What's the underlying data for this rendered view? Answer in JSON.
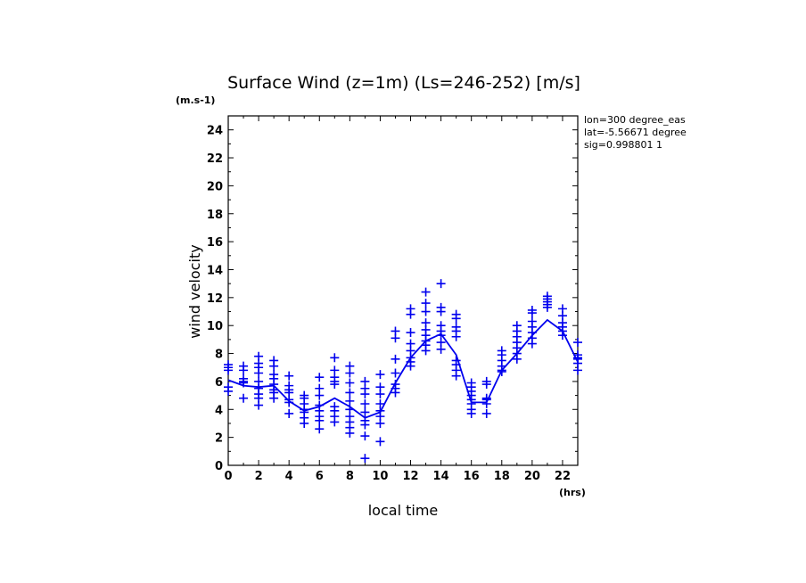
{
  "chart_data": {
    "type": "line",
    "title": "Surface Wind (z=1m) (Ls=246-252) [m/s]",
    "xlabel": "local time",
    "ylabel": "wind velocity",
    "x_unit": "(hrs)",
    "y_unit": "(m.s-1)",
    "xlim": [
      0,
      23
    ],
    "ylim": [
      0,
      25
    ],
    "x_ticks": [
      0,
      2,
      4,
      6,
      8,
      10,
      12,
      14,
      16,
      18,
      20,
      22
    ],
    "y_ticks": [
      0,
      2,
      4,
      6,
      8,
      10,
      12,
      14,
      16,
      18,
      20,
      22,
      24
    ],
    "grid": false,
    "annotations": [
      "lon=300 degree_eas",
      "lat=-5.56671 degree",
      "sig=0.998801 1"
    ],
    "mean_line": {
      "x": [
        0,
        1,
        2,
        3,
        4,
        5,
        6,
        7,
        8,
        9,
        10,
        11,
        12,
        13,
        14,
        15,
        16,
        17,
        18,
        19,
        20,
        21,
        22,
        23
      ],
      "y": [
        6.1,
        5.7,
        5.6,
        5.7,
        4.6,
        3.9,
        4.2,
        4.8,
        4.2,
        3.4,
        3.8,
        5.9,
        7.7,
        8.9,
        9.4,
        7.9,
        4.5,
        4.5,
        6.8,
        8.0,
        9.3,
        10.4,
        9.6,
        7.4
      ]
    },
    "scatter": [
      {
        "x": 0,
        "y": [
          7.2,
          7.0,
          6.8,
          5.6,
          5.3
        ]
      },
      {
        "x": 1,
        "y": [
          7.1,
          6.8,
          6.2,
          6.0,
          5.9,
          4.8
        ]
      },
      {
        "x": 2,
        "y": [
          7.8,
          7.3,
          7.0,
          6.6,
          6.0,
          5.5,
          5.1,
          4.8,
          4.3
        ]
      },
      {
        "x": 3,
        "y": [
          7.5,
          7.1,
          6.5,
          6.2,
          5.8,
          5.4,
          5.2,
          4.8
        ]
      },
      {
        "x": 4,
        "y": [
          6.4,
          5.7,
          5.4,
          5.2,
          4.7,
          4.5,
          3.7
        ]
      },
      {
        "x": 5,
        "y": [
          5.0,
          4.8,
          4.4,
          4.0,
          3.8,
          3.4,
          3.0
        ]
      },
      {
        "x": 6,
        "y": [
          6.3,
          5.5,
          5.0,
          4.3,
          3.9,
          3.5,
          3.2,
          2.6
        ]
      },
      {
        "x": 7,
        "y": [
          7.7,
          6.8,
          6.3,
          6.0,
          5.8,
          4.2,
          3.9,
          3.5,
          3.1
        ]
      },
      {
        "x": 8,
        "y": [
          7.1,
          6.6,
          5.9,
          5.2,
          4.6,
          4.0,
          3.5,
          3.1,
          2.7,
          2.3
        ]
      },
      {
        "x": 9,
        "y": [
          6.0,
          5.5,
          5.1,
          4.4,
          3.8,
          3.2,
          2.9,
          2.1,
          0.5
        ]
      },
      {
        "x": 10,
        "y": [
          6.5,
          5.6,
          5.1,
          4.4,
          3.9,
          3.5,
          3.0,
          1.7
        ]
      },
      {
        "x": 11,
        "y": [
          9.6,
          9.1,
          7.6,
          6.6,
          5.8,
          5.5,
          5.2
        ]
      },
      {
        "x": 12,
        "y": [
          11.2,
          10.8,
          9.5,
          8.7,
          8.2,
          7.7,
          7.4,
          7.1
        ]
      },
      {
        "x": 13,
        "y": [
          12.4,
          11.6,
          11.0,
          10.2,
          9.7,
          9.3,
          8.9,
          8.6,
          8.2
        ]
      },
      {
        "x": 14,
        "y": [
          13.0,
          11.3,
          11.0,
          10.0,
          9.6,
          9.3,
          8.8,
          8.3
        ]
      },
      {
        "x": 15,
        "y": [
          10.8,
          10.5,
          9.9,
          9.6,
          9.2,
          7.5,
          7.2,
          6.8,
          6.4
        ]
      },
      {
        "x": 16,
        "y": [
          5.9,
          5.6,
          5.3,
          5.0,
          4.7,
          4.4,
          4.0,
          3.7
        ]
      },
      {
        "x": 17,
        "y": [
          6.0,
          5.8,
          4.8,
          4.7,
          4.4,
          3.7
        ]
      },
      {
        "x": 18,
        "y": [
          8.2,
          7.9,
          7.5,
          7.1,
          6.8,
          6.7
        ]
      },
      {
        "x": 19,
        "y": [
          10.0,
          9.6,
          9.2,
          8.8,
          8.4,
          8.0,
          7.6
        ]
      },
      {
        "x": 20,
        "y": [
          11.1,
          10.9,
          10.3,
          9.9,
          9.5,
          9.1,
          8.7
        ]
      },
      {
        "x": 21,
        "y": [
          12.1,
          11.9,
          11.7,
          11.5,
          11.3
        ]
      },
      {
        "x": 22,
        "y": [
          11.2,
          10.7,
          10.2,
          9.9,
          9.6,
          9.3
        ]
      },
      {
        "x": 23,
        "y": [
          8.8,
          7.9,
          7.7,
          7.6,
          7.3,
          6.8
        ]
      }
    ],
    "colors": {
      "series": "#0000ee",
      "axes": "#000000"
    }
  }
}
